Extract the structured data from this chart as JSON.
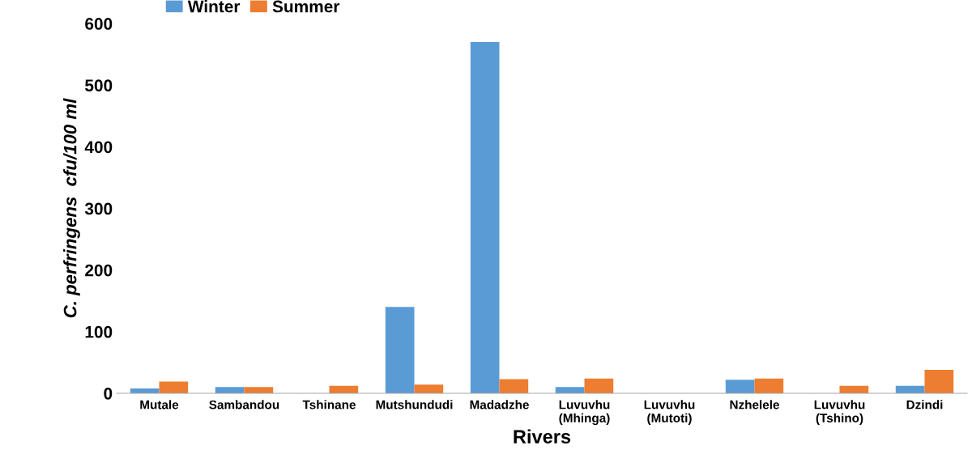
{
  "chart_data": {
    "type": "bar",
    "xlabel": "Rivers",
    "ylabel": "C. perfringens  cfu/100 ml",
    "categories": [
      "Mutale",
      "Sambandou",
      "Tshinane",
      "Mutshundudi",
      "Madadzhe",
      "Luvuvhu\n(Mhinga)",
      "Luvuvhu\n(Mutoti)",
      "Nzhelele",
      "Luvuvhu\n(Tshino)",
      "Dzindi"
    ],
    "series": [
      {
        "name": "Winter",
        "color": "#5b9bd5",
        "values": [
          8,
          10,
          0,
          140,
          570,
          10,
          0,
          22,
          0,
          12
        ]
      },
      {
        "name": "Summer",
        "color": "#ed7d31",
        "values": [
          19,
          10,
          12,
          14,
          23,
          24,
          0,
          24,
          12,
          38
        ]
      }
    ],
    "ylim": [
      0,
      600
    ],
    "yticks": [
      0,
      100,
      200,
      300,
      400,
      500,
      600
    ],
    "grid": false,
    "legend": "top left"
  }
}
